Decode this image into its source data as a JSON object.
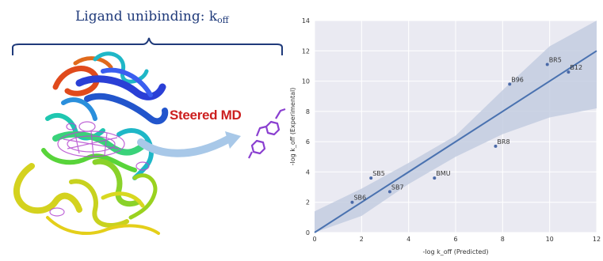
{
  "left_panel": {
    "title_main": "Ligand unibinding: k",
    "title_sub": "off",
    "method_label": "Steered MD"
  },
  "chart_data": {
    "type": "scatter",
    "x_axis_label": "-log k_off (Predicted)",
    "y_axis_label": "-log k_off (Experimental)",
    "xlim": [
      0,
      12
    ],
    "ylim": [
      0,
      14
    ],
    "x_ticks": [
      0,
      2,
      4,
      6,
      8,
      10,
      12
    ],
    "y_ticks": [
      0,
      2,
      4,
      6,
      8,
      10,
      12,
      14
    ],
    "grid": true,
    "points": [
      {
        "label": "SB6",
        "x": 1.6,
        "y": 2.0
      },
      {
        "label": "SB5",
        "x": 2.4,
        "y": 3.6
      },
      {
        "label": "SB7",
        "x": 3.2,
        "y": 2.7
      },
      {
        "label": "BMU",
        "x": 5.1,
        "y": 3.6
      },
      {
        "label": "BR8",
        "x": 7.7,
        "y": 5.7
      },
      {
        "label": "B96",
        "x": 8.3,
        "y": 9.8
      },
      {
        "label": "BR5",
        "x": 9.9,
        "y": 11.1
      },
      {
        "label": "B12",
        "x": 10.8,
        "y": 10.6
      }
    ],
    "fit_line": {
      "x": [
        0,
        12
      ],
      "y": [
        0,
        12
      ]
    },
    "confidence_band": {
      "x": [
        0,
        2,
        4,
        6,
        8,
        10,
        12
      ],
      "lower": [
        -1.4,
        1.1,
        3.2,
        5.0,
        6.5,
        7.6,
        8.2
      ],
      "upper": [
        1.4,
        2.9,
        4.6,
        6.4,
        9.4,
        12.3,
        15.3
      ]
    },
    "colors": {
      "points": "#4b6aa8",
      "line": "#4a72b0",
      "band": "#c3cce0",
      "background": "#eaeaf2",
      "grid": "#ffffff"
    }
  }
}
